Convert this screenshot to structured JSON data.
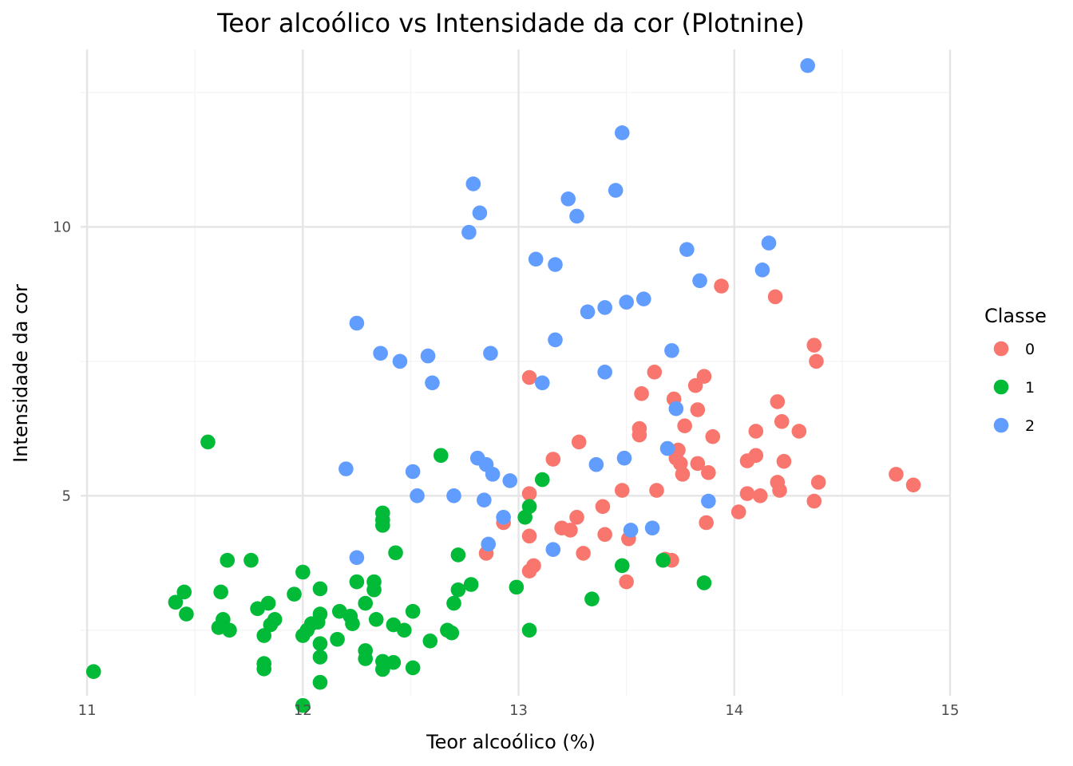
{
  "chart_data": {
    "type": "scatter",
    "title": "Teor alcoólico vs Intensidade da cor (Plotnine)",
    "xlabel": "Teor alcoólico (%)",
    "ylabel": "Intensidade da cor",
    "xlim": [
      10.97,
      15.0
    ],
    "ylim": [
      1.28,
      13.3
    ],
    "x_ticks": [
      11,
      12,
      13,
      14,
      15
    ],
    "y_ticks": [
      5,
      10
    ],
    "grid": true,
    "legend": {
      "title": "Classe",
      "placement": "right"
    },
    "series": [
      {
        "name": "0",
        "color": "#f8766d",
        "points": [
          [
            13.94,
            8.9
          ],
          [
            14.19,
            8.7
          ],
          [
            14.37,
            7.8
          ],
          [
            14.38,
            7.5
          ],
          [
            13.86,
            7.22
          ],
          [
            13.05,
            7.2
          ],
          [
            13.63,
            7.3
          ],
          [
            13.82,
            7.05
          ],
          [
            13.72,
            6.8
          ],
          [
            13.57,
            6.9
          ],
          [
            14.2,
            6.75
          ],
          [
            13.83,
            6.6
          ],
          [
            14.22,
            6.38
          ],
          [
            13.77,
            6.3
          ],
          [
            13.56,
            6.25
          ],
          [
            13.56,
            6.13
          ],
          [
            14.1,
            6.2
          ],
          [
            14.3,
            6.2
          ],
          [
            13.9,
            6.1
          ],
          [
            13.28,
            6.0
          ],
          [
            13.74,
            5.85
          ],
          [
            14.1,
            5.75
          ],
          [
            13.73,
            5.7
          ],
          [
            13.16,
            5.68
          ],
          [
            13.75,
            5.6
          ],
          [
            14.06,
            5.65
          ],
          [
            14.23,
            5.64
          ],
          [
            13.83,
            5.6
          ],
          [
            13.88,
            5.43
          ],
          [
            13.76,
            5.4
          ],
          [
            14.75,
            5.4
          ],
          [
            14.83,
            5.2
          ],
          [
            14.39,
            5.25
          ],
          [
            14.2,
            5.25
          ],
          [
            14.21,
            5.1
          ],
          [
            13.48,
            5.1
          ],
          [
            13.64,
            5.1
          ],
          [
            14.06,
            5.04
          ],
          [
            14.12,
            5.0
          ],
          [
            13.05,
            5.04
          ],
          [
            14.37,
            4.9
          ],
          [
            13.39,
            4.8
          ],
          [
            14.02,
            4.7
          ],
          [
            13.27,
            4.6
          ],
          [
            12.93,
            4.5
          ],
          [
            13.87,
            4.5
          ],
          [
            13.2,
            4.4
          ],
          [
            13.24,
            4.36
          ],
          [
            13.4,
            4.28
          ],
          [
            13.05,
            4.25
          ],
          [
            13.51,
            4.2
          ],
          [
            12.85,
            3.93
          ],
          [
            13.3,
            3.93
          ],
          [
            13.71,
            3.8
          ],
          [
            13.68,
            3.82
          ],
          [
            13.07,
            3.7
          ],
          [
            13.05,
            3.6
          ],
          [
            13.5,
            3.4
          ]
        ]
      },
      {
        "name": "1",
        "color": "#00ba38",
        "points": [
          [
            11.56,
            6.0
          ],
          [
            12.64,
            5.75
          ],
          [
            13.11,
            5.3
          ],
          [
            13.05,
            4.8
          ],
          [
            13.03,
            4.6
          ],
          [
            12.37,
            4.68
          ],
          [
            12.37,
            4.55
          ],
          [
            12.37,
            4.45
          ],
          [
            12.43,
            3.94
          ],
          [
            12.72,
            3.9
          ],
          [
            11.65,
            3.8
          ],
          [
            11.76,
            3.8
          ],
          [
            13.48,
            3.7
          ],
          [
            13.67,
            3.8
          ],
          [
            12.0,
            3.58
          ],
          [
            12.25,
            3.4
          ],
          [
            12.33,
            3.4
          ],
          [
            12.78,
            3.35
          ],
          [
            12.08,
            3.27
          ],
          [
            12.33,
            3.25
          ],
          [
            12.72,
            3.25
          ],
          [
            12.99,
            3.3
          ],
          [
            13.86,
            3.38
          ],
          [
            11.45,
            3.21
          ],
          [
            11.62,
            3.21
          ],
          [
            11.96,
            3.17
          ],
          [
            13.34,
            3.08
          ],
          [
            11.41,
            3.02
          ],
          [
            11.84,
            3.0
          ],
          [
            12.29,
            3.0
          ],
          [
            12.7,
            3.0
          ],
          [
            11.79,
            2.9
          ],
          [
            12.17,
            2.85
          ],
          [
            12.51,
            2.85
          ],
          [
            11.46,
            2.8
          ],
          [
            12.08,
            2.8
          ],
          [
            12.22,
            2.76
          ],
          [
            11.63,
            2.7
          ],
          [
            11.87,
            2.7
          ],
          [
            12.34,
            2.7
          ],
          [
            12.07,
            2.65
          ],
          [
            12.04,
            2.62
          ],
          [
            12.23,
            2.62
          ],
          [
            11.85,
            2.6
          ],
          [
            12.42,
            2.6
          ],
          [
            11.61,
            2.55
          ],
          [
            11.66,
            2.5
          ],
          [
            12.02,
            2.5
          ],
          [
            12.47,
            2.5
          ],
          [
            12.67,
            2.5
          ],
          [
            12.69,
            2.45
          ],
          [
            13.05,
            2.5
          ],
          [
            11.82,
            2.4
          ],
          [
            12.0,
            2.4
          ],
          [
            12.16,
            2.33
          ],
          [
            12.08,
            2.25
          ],
          [
            12.59,
            2.3
          ],
          [
            12.29,
            2.12
          ],
          [
            12.08,
            2.0
          ],
          [
            12.29,
            1.97
          ],
          [
            12.37,
            1.92
          ],
          [
            12.42,
            1.9
          ],
          [
            11.82,
            1.88
          ],
          [
            11.82,
            1.78
          ],
          [
            12.37,
            1.77
          ],
          [
            12.51,
            1.8
          ],
          [
            11.03,
            1.73
          ],
          [
            12.08,
            1.53
          ],
          [
            12.0,
            1.1
          ]
        ]
      },
      {
        "name": "2",
        "color": "#619cff",
        "points": [
          [
            14.34,
            13.0
          ],
          [
            13.48,
            11.75
          ],
          [
            12.79,
            10.8
          ],
          [
            13.45,
            10.68
          ],
          [
            13.23,
            10.52
          ],
          [
            12.82,
            10.26
          ],
          [
            13.27,
            10.2
          ],
          [
            12.77,
            9.9
          ],
          [
            14.16,
            9.7
          ],
          [
            13.78,
            9.58
          ],
          [
            13.08,
            9.4
          ],
          [
            13.17,
            9.3
          ],
          [
            14.13,
            9.2
          ],
          [
            13.84,
            9.0
          ],
          [
            13.58,
            8.66
          ],
          [
            13.5,
            8.6
          ],
          [
            13.4,
            8.5
          ],
          [
            13.32,
            8.42
          ],
          [
            12.25,
            8.21
          ],
          [
            13.17,
            7.9
          ],
          [
            13.71,
            7.7
          ],
          [
            12.36,
            7.65
          ],
          [
            12.87,
            7.65
          ],
          [
            12.58,
            7.6
          ],
          [
            12.45,
            7.5
          ],
          [
            13.4,
            7.3
          ],
          [
            12.6,
            7.1
          ],
          [
            13.11,
            7.1
          ],
          [
            13.73,
            6.62
          ],
          [
            13.69,
            5.88
          ],
          [
            12.81,
            5.7
          ],
          [
            13.49,
            5.7
          ],
          [
            12.85,
            5.58
          ],
          [
            13.36,
            5.58
          ],
          [
            12.2,
            5.5
          ],
          [
            12.51,
            5.45
          ],
          [
            12.88,
            5.4
          ],
          [
            12.96,
            5.28
          ],
          [
            12.53,
            5.0
          ],
          [
            12.7,
            5.0
          ],
          [
            12.84,
            4.92
          ],
          [
            13.88,
            4.9
          ],
          [
            12.93,
            4.6
          ],
          [
            13.62,
            4.4
          ],
          [
            13.52,
            4.36
          ],
          [
            12.86,
            4.1
          ],
          [
            13.16,
            4.0
          ],
          [
            12.25,
            3.85
          ]
        ]
      }
    ]
  }
}
